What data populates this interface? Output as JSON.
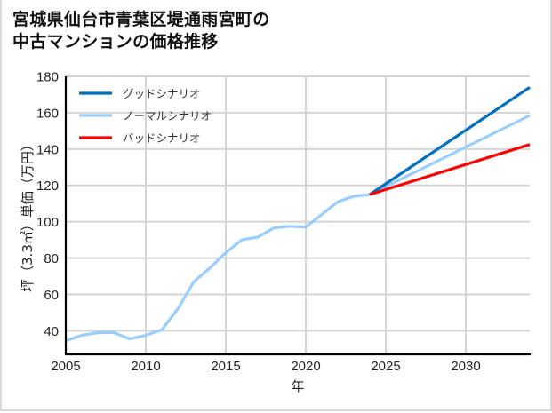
{
  "title": {
    "line1": "宮城県仙台市青葉区堤通雨宮町の",
    "line2": "中古マンションの価格推移"
  },
  "chart_data": {
    "type": "line",
    "title": "宮城県仙台市青葉区堤通雨宮町の中古マンションの価格推移",
    "xlabel": "年",
    "ylabel": "坪（3.3㎡）単価（万円）",
    "xlim": [
      2005,
      2034
    ],
    "ylim": [
      27,
      180
    ],
    "xticks": [
      2005,
      2010,
      2015,
      2020,
      2025,
      2030
    ],
    "yticks": [
      40,
      60,
      80,
      100,
      120,
      140,
      160,
      180
    ],
    "grid": true,
    "legend_position": "upper left",
    "series": [
      {
        "name": "グッドシナリオ",
        "color": "#0070c0",
        "x": [
          2024,
          2034
        ],
        "values": [
          115,
          174
        ]
      },
      {
        "name": "ノーマルシナリオ",
        "color": "#99ccff",
        "x": [
          2005,
          2006,
          2007,
          2008,
          2009,
          2010,
          2011,
          2012,
          2013,
          2014,
          2015,
          2016,
          2017,
          2018,
          2019,
          2020,
          2021,
          2022,
          2023,
          2024,
          2034
        ],
        "values": [
          34.5,
          37.5,
          39,
          39,
          35.5,
          37.5,
          40.5,
          52,
          67,
          74.5,
          83,
          90,
          91.5,
          96.5,
          97.5,
          97,
          104,
          111,
          114,
          115,
          158.5
        ]
      },
      {
        "name": "バッドシナリオ",
        "color": "#ff0000",
        "x": [
          2024,
          2034
        ],
        "values": [
          115,
          142.5
        ]
      }
    ]
  }
}
